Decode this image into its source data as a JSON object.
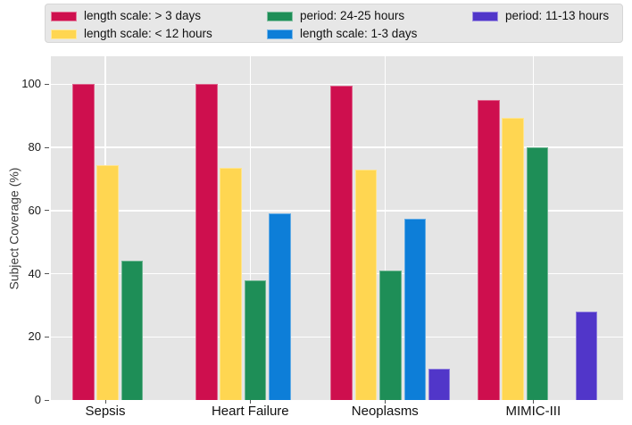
{
  "chart_data": {
    "type": "bar",
    "title": "",
    "xlabel": "",
    "ylabel": "Subject Coverage (%)",
    "categories": [
      "Sepsis",
      "Heart Failure",
      "Neoplasms",
      "MIMIC-III"
    ],
    "yticks": [
      0,
      20,
      40,
      60,
      80,
      100
    ],
    "ylim": [
      0,
      109
    ],
    "grid": true,
    "legend_position": "top",
    "plot_background": "#e5e5e5",
    "gridline_color": "#ffffff",
    "series": [
      {
        "name": "length scale: > 3 days",
        "color": "#ce0f4e",
        "values": [
          100,
          100,
          99.5,
          95
        ]
      },
      {
        "name": "length scale: < 12 hours",
        "color": "#ffd651",
        "values": [
          74.5,
          73.5,
          73,
          89.5
        ]
      },
      {
        "name": "period: 24-25 hours",
        "color": "#1e8e57",
        "values": [
          44,
          38,
          41,
          80
        ]
      },
      {
        "name": "length scale: 1-3 days",
        "color": "#0d7ed8",
        "values": [
          null,
          59,
          57.5,
          null
        ]
      },
      {
        "name": "period: 11-13 hours",
        "color": "#5136c9",
        "values": [
          null,
          null,
          10,
          28
        ]
      }
    ]
  }
}
